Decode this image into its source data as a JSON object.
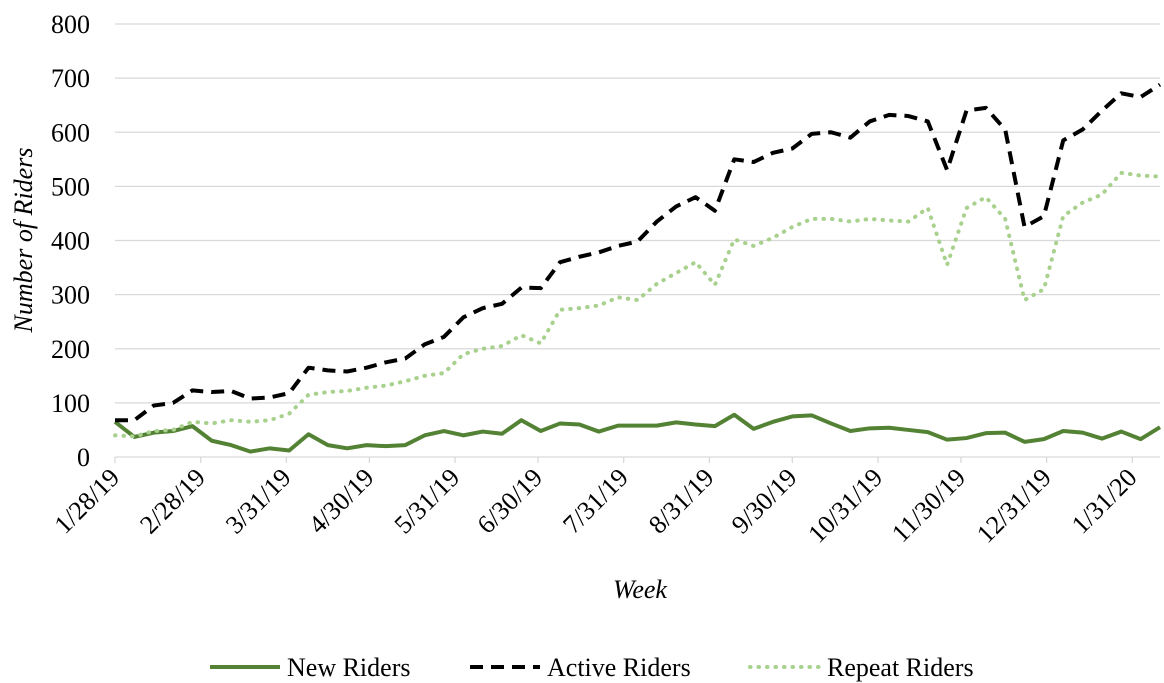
{
  "chart_data": {
    "type": "line",
    "xlabel": "Week",
    "ylabel": "Number of Riders",
    "x": [
      "1/28/19",
      "2/4/19",
      "2/11/19",
      "2/18/19",
      "2/25/19",
      "3/4/19",
      "3/11/19",
      "3/18/19",
      "3/25/19",
      "4/1/19",
      "4/8/19",
      "4/15/19",
      "4/22/19",
      "4/29/19",
      "5/6/19",
      "5/13/19",
      "5/20/19",
      "5/27/19",
      "6/3/19",
      "6/10/19",
      "6/17/19",
      "6/24/19",
      "7/1/19",
      "7/8/19",
      "7/15/19",
      "7/22/19",
      "7/29/19",
      "8/5/19",
      "8/12/19",
      "8/19/19",
      "8/26/19",
      "9/2/19",
      "9/9/19",
      "9/16/19",
      "9/23/19",
      "9/30/19",
      "10/7/19",
      "10/14/19",
      "10/21/19",
      "10/28/19",
      "11/4/19",
      "11/11/19",
      "11/18/19",
      "11/25/19",
      "12/2/19",
      "12/9/19",
      "12/16/19",
      "12/23/19",
      "12/30/19",
      "1/6/20",
      "1/13/20",
      "1/20/20",
      "1/27/20",
      "2/3/20",
      "2/10/20"
    ],
    "series": [
      {
        "name": "New Riders",
        "color": "#548235",
        "dash": "solid",
        "values": [
          65,
          37,
          45,
          48,
          57,
          30,
          22,
          10,
          16,
          12,
          42,
          22,
          16,
          22,
          20,
          22,
          40,
          48,
          40,
          47,
          43,
          68,
          48,
          62,
          60,
          47,
          58,
          58,
          58,
          64,
          60,
          57,
          78,
          52,
          65,
          75,
          77,
          62,
          48,
          53,
          54,
          50,
          46,
          32,
          35,
          44,
          45,
          28,
          33,
          48,
          45,
          34,
          47,
          33,
          55
        ]
      },
      {
        "name": "Active Riders",
        "color": "#000000",
        "dash": "dashed",
        "values": [
          68,
          68,
          95,
          100,
          123,
          120,
          122,
          108,
          110,
          118,
          165,
          160,
          158,
          165,
          175,
          182,
          208,
          222,
          258,
          275,
          283,
          313,
          312,
          360,
          370,
          378,
          390,
          398,
          435,
          463,
          480,
          455,
          550,
          545,
          562,
          570,
          597,
          600,
          590,
          620,
          632,
          630,
          620,
          530,
          640,
          645,
          605,
          425,
          445,
          585,
          605,
          640,
          672,
          665,
          688
        ]
      },
      {
        "name": "Repeat Riders",
        "color": "#a9d18e",
        "dash": "dotted",
        "values": [
          40,
          38,
          48,
          50,
          65,
          62,
          68,
          65,
          68,
          80,
          115,
          120,
          122,
          128,
          132,
          140,
          150,
          155,
          190,
          200,
          205,
          225,
          210,
          272,
          275,
          280,
          295,
          290,
          320,
          340,
          360,
          318,
          402,
          390,
          405,
          425,
          440,
          440,
          435,
          440,
          437,
          435,
          460,
          355,
          460,
          480,
          440,
          290,
          310,
          445,
          470,
          485,
          525,
          520,
          518
        ]
      }
    ],
    "xlim": [
      "1/28/19",
      "2/10/20"
    ],
    "xticks": [
      "1/28/19",
      "2/28/19",
      "3/31/19",
      "4/30/19",
      "5/31/19",
      "6/30/19",
      "7/31/19",
      "8/31/19",
      "9/30/19",
      "10/31/19",
      "11/30/19",
      "12/31/19",
      "1/31/20"
    ],
    "ylim": [
      0,
      800
    ],
    "yticks": [
      0,
      100,
      200,
      300,
      400,
      500,
      600,
      700,
      800
    ],
    "grid": true,
    "legend": "bottom"
  }
}
